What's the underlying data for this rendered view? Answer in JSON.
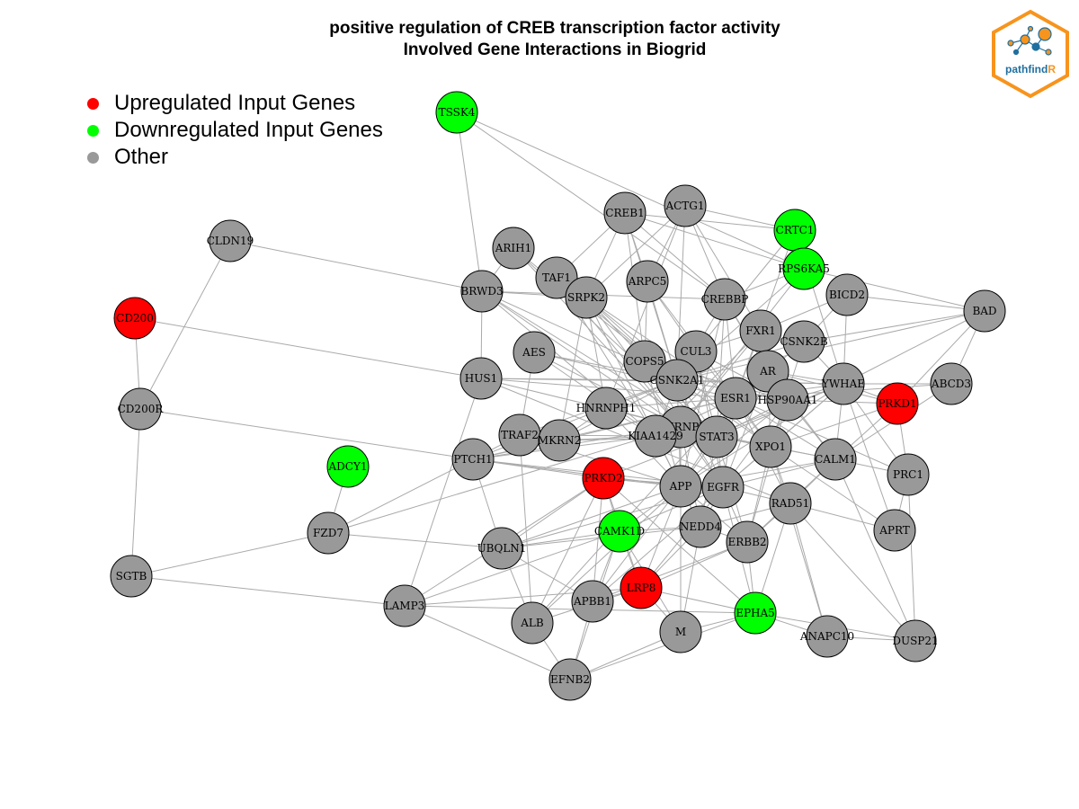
{
  "title": {
    "line1": "positive regulation of CREB transcription factor activity",
    "line2": "Involved Gene Interactions in Biogrid"
  },
  "legend": [
    {
      "label": "Upregulated Input Genes",
      "color": "#ff0000"
    },
    {
      "label": "Downregulated Input Genes",
      "color": "#00ff00"
    },
    {
      "label": "Other",
      "color": "#999999"
    }
  ],
  "logo": {
    "text_main": "pathfind",
    "text_accent": "R",
    "border_color": "#f7941d",
    "text_color": "#1f6f9f"
  },
  "colors": {
    "up": "#ff0000",
    "down": "#00ff00",
    "other": "#999999",
    "edge": "#aaaaaa"
  },
  "nodes": [
    {
      "id": "TSSK4",
      "type": "down"
    },
    {
      "id": "CREB1",
      "type": "other"
    },
    {
      "id": "ACTG1",
      "type": "other"
    },
    {
      "id": "CRTC1",
      "type": "down"
    },
    {
      "id": "RPS6KA5",
      "type": "down"
    },
    {
      "id": "ARIH1",
      "type": "other"
    },
    {
      "id": "TAF1",
      "type": "other"
    },
    {
      "id": "CLDN19",
      "type": "other"
    },
    {
      "id": "BRWD3",
      "type": "other"
    },
    {
      "id": "SRPK2",
      "type": "other"
    },
    {
      "id": "ARPC5",
      "type": "other"
    },
    {
      "id": "CREBBP",
      "type": "other"
    },
    {
      "id": "BICD2",
      "type": "other"
    },
    {
      "id": "BAD",
      "type": "other"
    },
    {
      "id": "CD200",
      "type": "up"
    },
    {
      "id": "FXR1",
      "type": "other"
    },
    {
      "id": "CSNK2B",
      "type": "other"
    },
    {
      "id": "AES",
      "type": "other"
    },
    {
      "id": "COPS5",
      "type": "other"
    },
    {
      "id": "CUL3",
      "type": "other"
    },
    {
      "id": "AR",
      "type": "other"
    },
    {
      "id": "HUS1",
      "type": "other"
    },
    {
      "id": "CSNK2A1",
      "type": "other"
    },
    {
      "id": "YWHAE",
      "type": "other"
    },
    {
      "id": "ABCD3",
      "type": "other"
    },
    {
      "id": "ESR1",
      "type": "other"
    },
    {
      "id": "HSP90AA1",
      "type": "other"
    },
    {
      "id": "PRKD1",
      "type": "up"
    },
    {
      "id": "CD200R",
      "type": "other"
    },
    {
      "id": "HNRNPH1",
      "type": "other"
    },
    {
      "id": "HNRNPL",
      "type": "other"
    },
    {
      "id": "TRAF2",
      "type": "other"
    },
    {
      "id": "MKRN2",
      "type": "other"
    },
    {
      "id": "KIAA1429",
      "type": "other"
    },
    {
      "id": "STAT3",
      "type": "other"
    },
    {
      "id": "XPO1",
      "type": "other"
    },
    {
      "id": "CALM1",
      "type": "other"
    },
    {
      "id": "ADCY1",
      "type": "down"
    },
    {
      "id": "PTCH1",
      "type": "other"
    },
    {
      "id": "PRC1",
      "type": "other"
    },
    {
      "id": "PRKD2",
      "type": "up"
    },
    {
      "id": "APP",
      "type": "other"
    },
    {
      "id": "EGFR",
      "type": "other"
    },
    {
      "id": "RAD51",
      "type": "other"
    },
    {
      "id": "CAMK1D",
      "type": "down"
    },
    {
      "id": "NEDD4",
      "type": "other"
    },
    {
      "id": "FZD7",
      "type": "other"
    },
    {
      "id": "APRT",
      "type": "other"
    },
    {
      "id": "ERBB2",
      "type": "other"
    },
    {
      "id": "UBQLN1",
      "type": "other"
    },
    {
      "id": "SGTB",
      "type": "other"
    },
    {
      "id": "LRP8",
      "type": "up"
    },
    {
      "id": "APBB1",
      "type": "other"
    },
    {
      "id": "LAMP3",
      "type": "other"
    },
    {
      "id": "EPHA5",
      "type": "down"
    },
    {
      "id": "ALB",
      "type": "other"
    },
    {
      "id": "M",
      "type": "other"
    },
    {
      "id": "ANAPC10",
      "type": "other"
    },
    {
      "id": "DUSP21",
      "type": "other"
    },
    {
      "id": "EFNB2",
      "type": "other"
    }
  ],
  "edges": [
    [
      "TSSK4",
      "BRWD3"
    ],
    [
      "TSSK4",
      "CREBBP"
    ],
    [
      "TSSK4",
      "RPS6KA5"
    ],
    [
      "CLDN19",
      "BRWD3"
    ],
    [
      "CLDN19",
      "CD200R"
    ],
    [
      "CD200",
      "CD200R"
    ],
    [
      "CD200",
      "HUS1"
    ],
    [
      "CD200R",
      "SGTB"
    ],
    [
      "CD200R",
      "PTCH1"
    ],
    [
      "SGTB",
      "FZD7"
    ],
    [
      "SGTB",
      "LAMP3"
    ],
    [
      "ADCY1",
      "FZD7"
    ],
    [
      "FZD7",
      "PTCH1"
    ],
    [
      "FZD7",
      "UBQLN1"
    ],
    [
      "FZD7",
      "HNRNPL"
    ],
    [
      "LAMP3",
      "HUS1"
    ],
    [
      "LAMP3",
      "PRKD2"
    ],
    [
      "LAMP3",
      "EPHA5"
    ],
    [
      "LAMP3",
      "CAMK1D"
    ],
    [
      "LAMP3",
      "EFNB2"
    ],
    [
      "LAMP3",
      "LRP8"
    ],
    [
      "EFNB2",
      "ALB"
    ],
    [
      "EFNB2",
      "M"
    ],
    [
      "EFNB2",
      "APBB1"
    ],
    [
      "EFNB2",
      "EPHA5"
    ],
    [
      "EFNB2",
      "CAMK1D"
    ],
    [
      "ALB",
      "APP"
    ],
    [
      "ALB",
      "LRP8"
    ],
    [
      "ALB",
      "ESR1"
    ],
    [
      "ALB",
      "TRAF2"
    ],
    [
      "M",
      "APP"
    ],
    [
      "M",
      "LRP8"
    ],
    [
      "M",
      "NEDD4"
    ],
    [
      "M",
      "EPHA5"
    ],
    [
      "M",
      "CAMK1D"
    ],
    [
      "EPHA5",
      "ANAPC10"
    ],
    [
      "EPHA5",
      "DUSP21"
    ],
    [
      "EPHA5",
      "ERBB2"
    ],
    [
      "EPHA5",
      "LRP8"
    ],
    [
      "EPHA5",
      "PRKD2"
    ],
    [
      "EPHA5",
      "RAD51"
    ],
    [
      "EPHA5",
      "EGFR"
    ],
    [
      "ANAPC10",
      "RAD51"
    ],
    [
      "ANAPC10",
      "XPO1"
    ],
    [
      "ANAPC10",
      "DUSP21"
    ],
    [
      "DUSP21",
      "PRC1"
    ],
    [
      "DUSP21",
      "CALM1"
    ],
    [
      "DUSP21",
      "RAD51"
    ],
    [
      "APRT",
      "PRC1"
    ],
    [
      "APRT",
      "RAD51"
    ],
    [
      "APRT",
      "XPO1"
    ],
    [
      "APRT",
      "YWHAE"
    ],
    [
      "PRC1",
      "PRKD1"
    ],
    [
      "PRC1",
      "CALM1"
    ],
    [
      "PRC1",
      "YWHAE"
    ],
    [
      "PRC1",
      "ESR1"
    ],
    [
      "PRKD1",
      "YWHAE"
    ],
    [
      "PRKD1",
      "BAD"
    ],
    [
      "PRKD1",
      "HSP90AA1"
    ],
    [
      "PRKD1",
      "AR"
    ],
    [
      "PRKD1",
      "CALM1"
    ],
    [
      "PRKD1",
      "XPO1"
    ],
    [
      "ABCD3",
      "YWHAE"
    ],
    [
      "ABCD3",
      "ESR1"
    ],
    [
      "ABCD3",
      "CALM1"
    ],
    [
      "ABCD3",
      "BAD"
    ],
    [
      "BAD",
      "YWHAE"
    ],
    [
      "BAD",
      "CSNK2B"
    ],
    [
      "BAD",
      "BICD2"
    ],
    [
      "BAD",
      "CSNK2A1"
    ],
    [
      "BAD",
      "RPS6KA5"
    ],
    [
      "BICD2",
      "FXR1"
    ],
    [
      "BICD2",
      "CSNK2B"
    ],
    [
      "BICD2",
      "YWHAE"
    ],
    [
      "CRTC1",
      "CREB1"
    ],
    [
      "CRTC1",
      "YWHAE"
    ],
    [
      "CRTC1",
      "ESR1"
    ],
    [
      "CRTC1",
      "CUL3"
    ],
    [
      "RPS6KA5",
      "CREB1"
    ],
    [
      "RPS6KA5",
      "CREBBP"
    ],
    [
      "RPS6KA5",
      "HNRNPL"
    ],
    [
      "RPS6KA5",
      "CSNK2A1"
    ],
    [
      "CREB1",
      "CREBBP"
    ],
    [
      "CREB1",
      "SRPK2"
    ],
    [
      "CREB1",
      "TAF1"
    ],
    [
      "CREB1",
      "CSNK2A1"
    ],
    [
      "CREB1",
      "ARPC5"
    ],
    [
      "CREB1",
      "COPS5"
    ],
    [
      "ACTG1",
      "CREBBP"
    ],
    [
      "ACTG1",
      "SRPK2"
    ],
    [
      "ACTG1",
      "CSNK2A1"
    ],
    [
      "ACTG1",
      "FXR1"
    ],
    [
      "ACTG1",
      "ARPC5"
    ],
    [
      "ACTG1",
      "HNRNPH1"
    ],
    [
      "ACTG1",
      "CRTC1"
    ],
    [
      "ARIH1",
      "BRWD3"
    ],
    [
      "ARIH1",
      "CSNK2A1"
    ],
    [
      "ARIH1",
      "HNRNPL"
    ],
    [
      "ARIH1",
      "STAT3"
    ],
    [
      "TAF1",
      "CSNK2A1"
    ],
    [
      "TAF1",
      "ESR1"
    ],
    [
      "TAF1",
      "HNRNPL"
    ],
    [
      "TAF1",
      "KIAA1429"
    ],
    [
      "BRWD3",
      "SRPK2"
    ],
    [
      "BRWD3",
      "HUS1"
    ],
    [
      "BRWD3",
      "CREBBP"
    ],
    [
      "BRWD3",
      "CSNK2A1"
    ],
    [
      "BRWD3",
      "HNRNPL"
    ],
    [
      "BRWD3",
      "KIAA1429"
    ],
    [
      "BRWD3",
      "STAT3"
    ],
    [
      "SRPK2",
      "HNRNPL"
    ],
    [
      "SRPK2",
      "HNRNPH1"
    ],
    [
      "SRPK2",
      "APP"
    ],
    [
      "SRPK2",
      "STAT3"
    ],
    [
      "SRPK2",
      "CSNK2A1"
    ],
    [
      "SRPK2",
      "XPO1"
    ],
    [
      "SRPK2",
      "MKRN2"
    ],
    [
      "ARPC5",
      "CSNK2A1"
    ],
    [
      "ARPC5",
      "CUL3"
    ],
    [
      "ARPC5",
      "COPS5"
    ],
    [
      "ARPC5",
      "ESR1"
    ],
    [
      "CREBBP",
      "ESR1"
    ],
    [
      "CREBBP",
      "STAT3"
    ],
    [
      "CREBBP",
      "AR"
    ],
    [
      "CREBBP",
      "CSNK2A1"
    ],
    [
      "CREBBP",
      "HSP90AA1"
    ],
    [
      "CREBBP",
      "APP"
    ],
    [
      "FXR1",
      "HNRNPL"
    ],
    [
      "FXR1",
      "CUL3"
    ],
    [
      "FXR1",
      "KIAA1429"
    ],
    [
      "FXR1",
      "ESR1"
    ],
    [
      "CSNK2B",
      "CSNK2A1"
    ],
    [
      "CSNK2B",
      "YWHAE"
    ],
    [
      "CSNK2B",
      "ESR1"
    ],
    [
      "CSNK2B",
      "XPO1"
    ],
    [
      "AES",
      "HNRNPL"
    ],
    [
      "AES",
      "ESR1"
    ],
    [
      "AES",
      "TRAF2"
    ],
    [
      "AES",
      "CSNK2A1"
    ],
    [
      "AES",
      "KIAA1429"
    ],
    [
      "COPS5",
      "CSNK2A1"
    ],
    [
      "COPS5",
      "HSP90AA1"
    ],
    [
      "COPS5",
      "STAT3"
    ],
    [
      "COPS5",
      "APP"
    ],
    [
      "COPS5",
      "EGFR"
    ],
    [
      "CUL3",
      "HNRNPL"
    ],
    [
      "CUL3",
      "HSP90AA1"
    ],
    [
      "CUL3",
      "STAT3"
    ],
    [
      "CUL3",
      "XPO1"
    ],
    [
      "CUL3",
      "EGFR"
    ],
    [
      "AR",
      "HSP90AA1"
    ],
    [
      "AR",
      "ESR1"
    ],
    [
      "AR",
      "STAT3"
    ],
    [
      "AR",
      "YWHAE"
    ],
    [
      "AR",
      "EGFR"
    ],
    [
      "AR",
      "XPO1"
    ],
    [
      "AR",
      "CALM1"
    ],
    [
      "HUS1",
      "HNRNPL"
    ],
    [
      "HUS1",
      "CSNK2A1"
    ],
    [
      "HUS1",
      "ESR1"
    ],
    [
      "HUS1",
      "YWHAE"
    ],
    [
      "HUS1",
      "RAD51"
    ],
    [
      "CSNK2A1",
      "HSP90AA1"
    ],
    [
      "CSNK2A1",
      "STAT3"
    ],
    [
      "CSNK2A1",
      "XPO1"
    ],
    [
      "CSNK2A1",
      "APP"
    ],
    [
      "CSNK2A1",
      "EGFR"
    ],
    [
      "CSNK2A1",
      "YWHAE"
    ],
    [
      "CSNK2A1",
      "HNRNPH1"
    ],
    [
      "CSNK2A1",
      "KIAA1429"
    ],
    [
      "CSNK2A1",
      "MKRN2"
    ],
    [
      "CSNK2A1",
      "TRAF2"
    ],
    [
      "CSNK2A1",
      "PTCH1"
    ],
    [
      "YWHAE",
      "HSP90AA1"
    ],
    [
      "YWHAE",
      "ESR1"
    ],
    [
      "YWHAE",
      "CALM1"
    ],
    [
      "YWHAE",
      "STAT3"
    ],
    [
      "YWHAE",
      "XPO1"
    ],
    [
      "YWHAE",
      "EGFR"
    ],
    [
      "YWHAE",
      "APP"
    ],
    [
      "YWHAE",
      "PRKD2"
    ],
    [
      "ESR1",
      "HSP90AA1"
    ],
    [
      "ESR1",
      "STAT3"
    ],
    [
      "ESR1",
      "XPO1"
    ],
    [
      "ESR1",
      "EGFR"
    ],
    [
      "ESR1",
      "APP"
    ],
    [
      "ESR1",
      "CALM1"
    ],
    [
      "ESR1",
      "HNRNPH1"
    ],
    [
      "ESR1",
      "MKRN2"
    ],
    [
      "ESR1",
      "KIAA1429"
    ],
    [
      "ESR1",
      "PTCH1"
    ],
    [
      "ESR1",
      "RAD51"
    ],
    [
      "HSP90AA1",
      "STAT3"
    ],
    [
      "HSP90AA1",
      "EGFR"
    ],
    [
      "HSP90AA1",
      "XPO1"
    ],
    [
      "HSP90AA1",
      "CALM1"
    ],
    [
      "HSP90AA1",
      "ERBB2"
    ],
    [
      "HSP90AA1",
      "APP"
    ],
    [
      "HNRNPH1",
      "HNRNPL"
    ],
    [
      "HNRNPH1",
      "KIAA1429"
    ],
    [
      "HNRNPH1",
      "MKRN2"
    ],
    [
      "HNRNPH1",
      "STAT3"
    ],
    [
      "HNRNPH1",
      "APP"
    ],
    [
      "HNRNPL",
      "KIAA1429"
    ],
    [
      "HNRNPL",
      "STAT3"
    ],
    [
      "HNRNPL",
      "APP"
    ],
    [
      "HNRNPL",
      "XPO1"
    ],
    [
      "HNRNPL",
      "EGFR"
    ],
    [
      "HNRNPL",
      "PTCH1"
    ],
    [
      "HNRNPL",
      "NEDD4"
    ],
    [
      "TRAF2",
      "MKRN2"
    ],
    [
      "TRAF2",
      "KIAA1429"
    ],
    [
      "TRAF2",
      "PTCH1"
    ],
    [
      "TRAF2",
      "APP"
    ],
    [
      "MKRN2",
      "KIAA1429"
    ],
    [
      "MKRN2",
      "PTCH1"
    ],
    [
      "MKRN2",
      "STAT3"
    ],
    [
      "KIAA1429",
      "STAT3"
    ],
    [
      "KIAA1429",
      "APP"
    ],
    [
      "KIAA1429",
      "PTCH1"
    ],
    [
      "KIAA1429",
      "NEDD4"
    ],
    [
      "STAT3",
      "XPO1"
    ],
    [
      "STAT3",
      "EGFR"
    ],
    [
      "STAT3",
      "APP"
    ],
    [
      "STAT3",
      "CALM1"
    ],
    [
      "STAT3",
      "ERBB2"
    ],
    [
      "STAT3",
      "NEDD4"
    ],
    [
      "XPO1",
      "EGFR"
    ],
    [
      "XPO1",
      "CALM1"
    ],
    [
      "XPO1",
      "RAD51"
    ],
    [
      "XPO1",
      "ERBB2"
    ],
    [
      "CALM1",
      "EGFR"
    ],
    [
      "CALM1",
      "RAD51"
    ],
    [
      "CALM1",
      "ERBB2"
    ],
    [
      "CALM1",
      "APP"
    ],
    [
      "PTCH1",
      "PRKD2"
    ],
    [
      "PTCH1",
      "UBQLN1"
    ],
    [
      "PTCH1",
      "APP"
    ],
    [
      "PTCH1",
      "EGFR"
    ],
    [
      "PRKD2",
      "APP"
    ],
    [
      "PRKD2",
      "CAMK1D"
    ],
    [
      "PRKD2",
      "UBQLN1"
    ],
    [
      "PRKD2",
      "EGFR"
    ],
    [
      "PRKD2",
      "LRP8"
    ],
    [
      "PRKD2",
      "APBB1"
    ],
    [
      "PRKD2",
      "ALB"
    ],
    [
      "APP",
      "EGFR"
    ],
    [
      "APP",
      "NEDD4"
    ],
    [
      "APP",
      "CAMK1D"
    ],
    [
      "APP",
      "APBB1"
    ],
    [
      "APP",
      "LRP8"
    ],
    [
      "APP",
      "UBQLN1"
    ],
    [
      "APP",
      "ERBB2"
    ],
    [
      "EGFR",
      "NEDD4"
    ],
    [
      "EGFR",
      "ERBB2"
    ],
    [
      "EGFR",
      "RAD51"
    ],
    [
      "EGFR",
      "CAMK1D"
    ],
    [
      "EGFR",
      "LRP8"
    ],
    [
      "EGFR",
      "UBQLN1"
    ],
    [
      "EGFR",
      "APBB1"
    ],
    [
      "RAD51",
      "ERBB2"
    ],
    [
      "RAD51",
      "NEDD4"
    ],
    [
      "CAMK1D",
      "NEDD4"
    ],
    [
      "CAMK1D",
      "APBB1"
    ],
    [
      "CAMK1D",
      "UBQLN1"
    ],
    [
      "CAMK1D",
      "LRP8"
    ],
    [
      "NEDD4",
      "ERBB2"
    ],
    [
      "NEDD4",
      "LRP8"
    ],
    [
      "NEDD4",
      "UBQLN1"
    ],
    [
      "ERBB2",
      "LRP8"
    ],
    [
      "ERBB2",
      "APBB1"
    ],
    [
      "UBQLN1",
      "APBB1"
    ],
    [
      "UBQLN1",
      "ALB"
    ],
    [
      "LRP8",
      "APBB1"
    ]
  ]
}
